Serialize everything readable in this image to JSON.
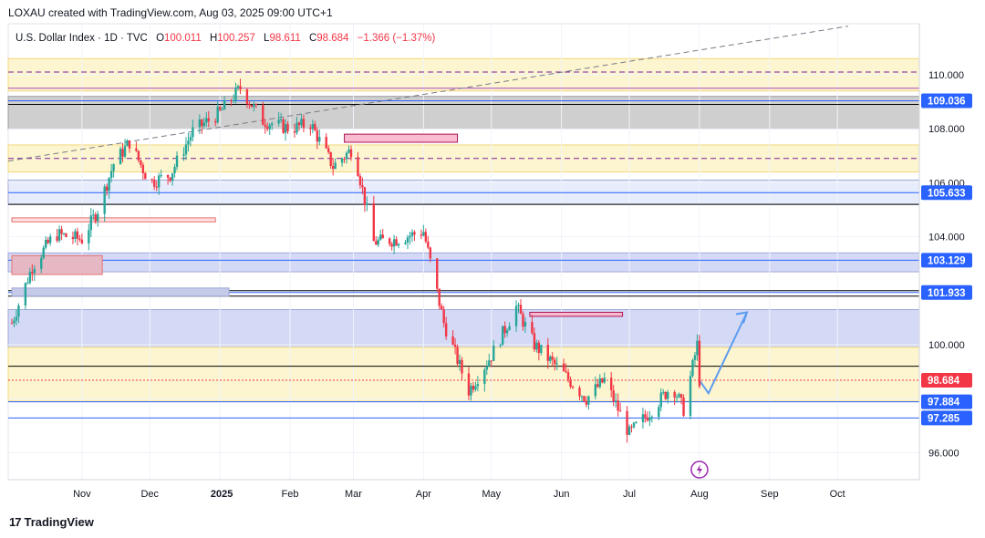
{
  "header": {
    "text": "LOXAU created with TradingView.com, Aug 03, 2025 09:00 UTC+1"
  },
  "legend": {
    "symbol": "U.S. Dollar Index · 1D · TVC",
    "open_label": "O",
    "open": "100.011",
    "high_label": "H",
    "high": "100.257",
    "low_label": "L",
    "low": "98.611",
    "close_label": "C",
    "close": "98.684",
    "change": "−1.366 (−1.37%)"
  },
  "footer": {
    "brand": "TradingView",
    "logo_glyph": "17"
  },
  "colors": {
    "up": "#26a69a",
    "down": "#f23645",
    "box_fill": "#b2ebf2",
    "box_stroke": "#00bcd4",
    "zone_yellow": "#fdf3c7",
    "zone_blue": "#c5cae9",
    "zone_gray": "#bdbdbd",
    "label_blue": "#2962ff",
    "label_red": "#f23645",
    "arrow": "#5b9bf0"
  },
  "chart_data": {
    "type": "candlestick",
    "title": "U.S. Dollar Index · 1D · TVC",
    "xlabel": "",
    "ylabel": "",
    "ylim": [
      94.7,
      111.0
    ],
    "x_ticks": [
      "Nov",
      "Dec",
      "2025",
      "Feb",
      "Mar",
      "Apr",
      "May",
      "Jun",
      "Jul",
      "Aug",
      "Sep",
      "Oct"
    ],
    "y_ticks": [
      "110.000",
      "108.000",
      "106.000",
      "104.000",
      "100.000",
      "96.000"
    ],
    "price_labels": [
      {
        "value": 109.036,
        "text": "109.036",
        "color": "blue"
      },
      {
        "value": 105.633,
        "text": "105.633",
        "color": "blue"
      },
      {
        "value": 103.129,
        "text": "103.129",
        "color": "blue"
      },
      {
        "value": 101.933,
        "text": "101.933",
        "color": "blue"
      },
      {
        "value": 98.684,
        "text": "98.684",
        "color": "red"
      },
      {
        "value": 97.884,
        "text": "97.884",
        "color": "blue"
      },
      {
        "value": 97.285,
        "text": "97.285",
        "color": "blue"
      }
    ],
    "ohlc": {
      "open": 100.011,
      "high": 100.257,
      "low": 98.611,
      "close": 98.684
    },
    "series_close_path": [
      [
        "2024-10-01",
        100.8
      ],
      [
        "2024-10-10",
        102.9
      ],
      [
        "2024-10-20",
        104.1
      ],
      [
        "2024-11-01",
        103.9
      ],
      [
        "2024-11-08",
        105.0
      ],
      [
        "2024-11-15",
        106.7
      ],
      [
        "2024-11-22",
        107.5
      ],
      [
        "2024-12-01",
        106.0
      ],
      [
        "2024-12-10",
        106.3
      ],
      [
        "2024-12-20",
        107.9
      ],
      [
        "2025-01-01",
        108.6
      ],
      [
        "2025-01-10",
        109.5
      ],
      [
        "2025-01-20",
        108.3
      ],
      [
        "2025-02-01",
        108.0
      ],
      [
        "2025-02-10",
        108.2
      ],
      [
        "2025-02-20",
        106.6
      ],
      [
        "2025-03-01",
        107.3
      ],
      [
        "2025-03-10",
        103.8
      ],
      [
        "2025-03-20",
        103.9
      ],
      [
        "2025-04-01",
        104.2
      ],
      [
        "2025-04-10",
        100.8
      ],
      [
        "2025-04-21",
        98.3
      ],
      [
        "2025-05-01",
        99.6
      ],
      [
        "2025-05-12",
        101.4
      ],
      [
        "2025-05-20",
        100.0
      ],
      [
        "2025-06-01",
        99.0
      ],
      [
        "2025-06-12",
        98.0
      ],
      [
        "2025-06-20",
        98.7
      ],
      [
        "2025-07-01",
        96.7
      ],
      [
        "2025-07-10",
        97.5
      ],
      [
        "2025-07-20",
        98.5
      ],
      [
        "2025-07-25",
        97.6
      ],
      [
        "2025-07-31",
        100.0
      ],
      [
        "2025-08-01",
        98.68
      ]
    ],
    "projection": [
      [
        "2025-08-01",
        98.68
      ],
      [
        "2025-08-05",
        98.2
      ],
      [
        "2025-08-22",
        101.2
      ]
    ],
    "zones": [
      {
        "from": 109.4,
        "to": 110.6,
        "color": "yellow"
      },
      {
        "from": 108.0,
        "to": 109.2,
        "color": "gray"
      },
      {
        "from": 106.4,
        "to": 107.4,
        "color": "yellow"
      },
      {
        "from": 105.2,
        "to": 106.1,
        "color": "light-blue"
      },
      {
        "from": 102.7,
        "to": 103.4,
        "color": "blue"
      },
      {
        "from": 99.9,
        "to": 101.3,
        "color": "blue"
      },
      {
        "from": 97.9,
        "to": 99.9,
        "color": "yellow"
      }
    ],
    "grid": true,
    "legend_position": "top-left"
  }
}
